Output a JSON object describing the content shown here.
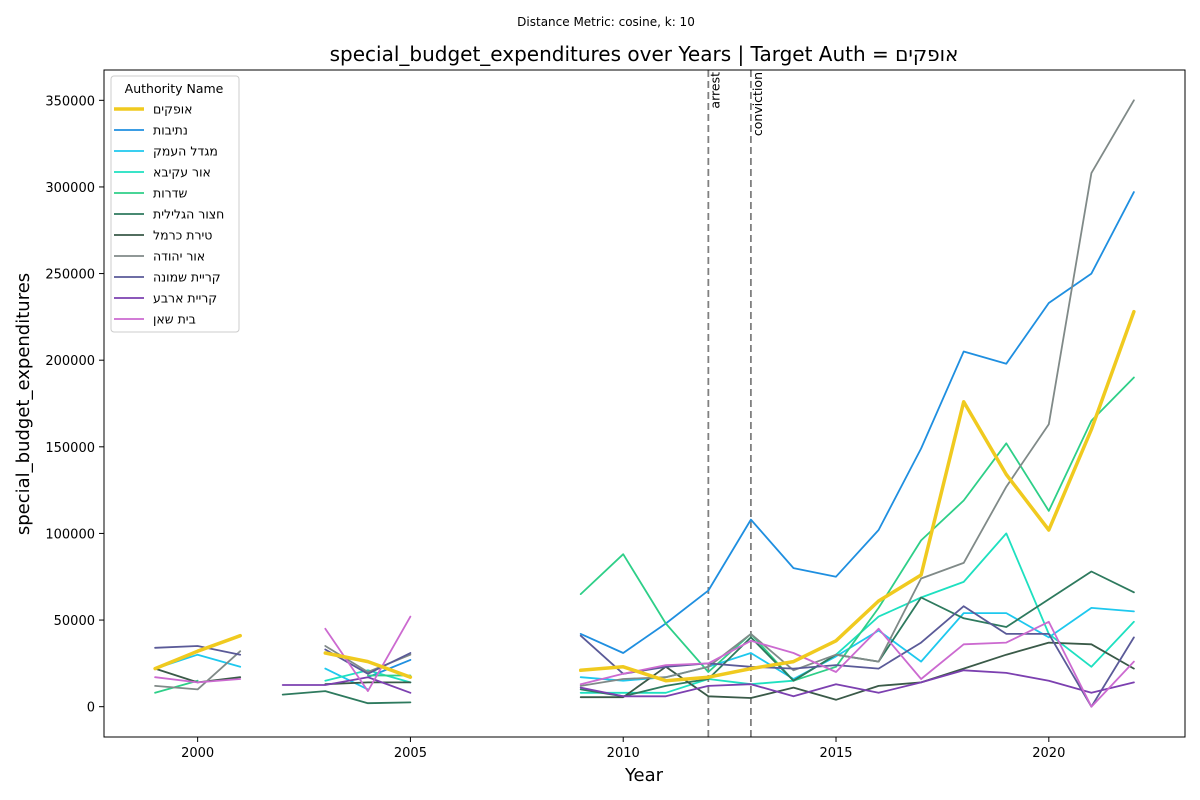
{
  "chart_data": {
    "type": "line",
    "suptitle": "Distance Metric: cosine, k: 10",
    "title": "special_budget_expenditures over Years | Target Auth = אופקים",
    "xlabel": "Year",
    "ylabel": "special_budget_expenditures",
    "xlim": [
      1997.8,
      2023.2
    ],
    "ylim": [
      -17500,
      367500
    ],
    "xticks": [
      2000,
      2005,
      2010,
      2015,
      2020
    ],
    "yticks": [
      0,
      50000,
      100000,
      150000,
      200000,
      250000,
      300000,
      350000
    ],
    "grid": false,
    "legend": {
      "title": "Authority Name",
      "placement": "top-left"
    },
    "events": [
      {
        "x": 2012,
        "label": "arrest"
      },
      {
        "x": 2013,
        "label": "conviction"
      }
    ],
    "x": [
      1999,
      2000,
      2001,
      2002,
      2003,
      2004,
      2005,
      2006,
      2007,
      2008,
      2009,
      2010,
      2011,
      2012,
      2013,
      2014,
      2015,
      2016,
      2017,
      2018,
      2019,
      2020,
      2021,
      2022
    ],
    "series": [
      {
        "name": "אופקים",
        "color": "#f0ca1f",
        "width": 3.5,
        "values": [
          22000,
          32000,
          41000,
          null,
          31000,
          26000,
          17000,
          null,
          null,
          null,
          21000,
          23000,
          15000,
          17000,
          22000,
          26000,
          38000,
          61000,
          76000,
          176000,
          134000,
          102000,
          160000,
          228000
        ]
      },
      {
        "name": "נתיבות",
        "color": "#1f8fe0",
        "width": 1.8,
        "values": [
          null,
          null,
          null,
          null,
          null,
          17000,
          27000,
          null,
          null,
          null,
          42000,
          31000,
          48000,
          67000,
          108000,
          80000,
          75000,
          102000,
          149000,
          205000,
          198000,
          233000,
          250000,
          297000
        ]
      },
      {
        "name": "מגדל העמק",
        "color": "#1ec8ee",
        "width": 1.8,
        "values": [
          22000,
          30000,
          23000,
          null,
          22000,
          10000,
          null,
          null,
          null,
          null,
          17000,
          15000,
          17000,
          23000,
          31000,
          16000,
          29000,
          44000,
          26000,
          54000,
          54000,
          40000,
          57000,
          55000
        ]
      },
      {
        "name": "אור עקיבא",
        "color": "#1ee0c0",
        "width": 1.8,
        "values": [
          null,
          null,
          null,
          null,
          15000,
          21000,
          14000,
          null,
          null,
          null,
          8000,
          8000,
          8000,
          16000,
          13000,
          15000,
          30000,
          52000,
          63000,
          72000,
          100000,
          42000,
          23000,
          49000
        ]
      },
      {
        "name": "שדרות",
        "color": "#2ecf88",
        "width": 1.8,
        "values": [
          8000,
          15000,
          null,
          null,
          null,
          18000,
          18000,
          null,
          null,
          null,
          65000,
          88000,
          48000,
          20000,
          42000,
          15000,
          23000,
          57000,
          96000,
          119000,
          152000,
          113000,
          165000,
          190000
        ]
      },
      {
        "name": "חצור הגלילית",
        "color": "#2e7a5e",
        "width": 1.8,
        "values": [
          null,
          null,
          null,
          7000,
          9000,
          2000,
          2500,
          null,
          null,
          null,
          10000,
          6000,
          12000,
          16000,
          40000,
          15000,
          30000,
          26000,
          63000,
          51000,
          46000,
          62000,
          78000,
          66000
        ]
      },
      {
        "name": "טירת כרמל",
        "color": "#3a5a48",
        "width": 1.8,
        "values": [
          22000,
          14000,
          17000,
          null,
          13000,
          14000,
          14000,
          null,
          null,
          null,
          5500,
          5500,
          23000,
          6000,
          5000,
          11000,
          4000,
          12000,
          14000,
          22000,
          30000,
          37000,
          36000,
          22000
        ]
      },
      {
        "name": "אור יהודה",
        "color": "#808a88",
        "width": 1.8,
        "values": [
          12000,
          10000,
          32000,
          null,
          35000,
          20000,
          30000,
          null,
          null,
          null,
          12000,
          16000,
          17000,
          23000,
          42000,
          21000,
          30000,
          26000,
          74000,
          83000,
          127000,
          163000,
          308000,
          350000
        ]
      },
      {
        "name": "קריית שמונה",
        "color": "#5a5a98",
        "width": 1.8,
        "values": [
          34000,
          35000,
          30000,
          null,
          33000,
          19000,
          31000,
          null,
          null,
          null,
          41000,
          19000,
          23000,
          25000,
          23000,
          22000,
          24000,
          22000,
          37000,
          58000,
          42000,
          42000,
          0,
          40000
        ]
      },
      {
        "name": "קריית ארבע",
        "color": "#7c40b0",
        "width": 1.8,
        "values": [
          null,
          null,
          null,
          12500,
          12500,
          17000,
          8000,
          null,
          null,
          null,
          11000,
          6000,
          6000,
          12000,
          13000,
          6000,
          13000,
          8000,
          14000,
          21000,
          19500,
          15000,
          8000,
          14000
        ]
      },
      {
        "name": "בית שאן",
        "color": "#cc6ad0",
        "width": 1.8,
        "values": [
          17000,
          14000,
          16000,
          null,
          45000,
          9000,
          52000,
          null,
          null,
          null,
          13000,
          19000,
          24000,
          25000,
          38000,
          31000,
          20000,
          45000,
          16000,
          36000,
          37000,
          49000,
          0,
          26000
        ]
      }
    ]
  }
}
